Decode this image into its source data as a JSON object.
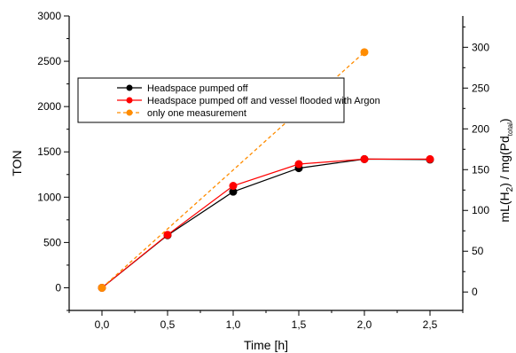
{
  "chart_data": {
    "type": "line",
    "xlabel": "Time [h]",
    "ylabel_left": "TON",
    "ylabel_right_parts": {
      "before_h": "mL(H",
      "h_sub": "2",
      "middle": ") / mg(Pd",
      "pd_sub": "total",
      "after": ")"
    },
    "xlim": [
      -0.25,
      2.75
    ],
    "ylim_left": [
      -250,
      3000
    ],
    "ylim_right": [
      -22.6,
      338.4
    ],
    "x_ticks": [
      0.0,
      0.5,
      1.0,
      1.5,
      2.0,
      2.5
    ],
    "x_tick_labels": [
      "0,0",
      "0,5",
      "1,0",
      "1,5",
      "2,0",
      "2,5"
    ],
    "y_ticks_left": [
      0,
      500,
      1000,
      1500,
      2000,
      2500,
      3000
    ],
    "y_tick_labels_left": [
      "0",
      "500",
      "1000",
      "1500",
      "2000",
      "2500",
      "3000"
    ],
    "y_ticks_right": [
      0,
      50,
      100,
      150,
      200,
      250,
      300
    ],
    "y_tick_labels_right": [
      "0",
      "50",
      "100",
      "150",
      "200",
      "250",
      "300"
    ],
    "legend_position": "upper-left",
    "series": [
      {
        "name": "Headspace pumped off",
        "color": "#000000",
        "line_style": "solid",
        "marker": "circle",
        "x": [
          0.0,
          0.5,
          1.0,
          1.5,
          2.0,
          2.5
        ],
        "y": [
          0,
          580,
          1060,
          1320,
          1420,
          1415
        ]
      },
      {
        "name": "Headspace pumped off and vessel flooded with Argon",
        "color": "#ff0000",
        "line_style": "solid",
        "marker": "circle",
        "x": [
          0.0,
          0.5,
          1.0,
          1.5,
          2.0,
          2.5
        ],
        "y": [
          0,
          585,
          1125,
          1365,
          1420,
          1420
        ]
      },
      {
        "name": "only one measurement",
        "color": "#ff8c00",
        "line_style": "dashed",
        "marker": "circle",
        "x": [
          0.0,
          2.0
        ],
        "y": [
          0,
          2600
        ]
      }
    ]
  }
}
